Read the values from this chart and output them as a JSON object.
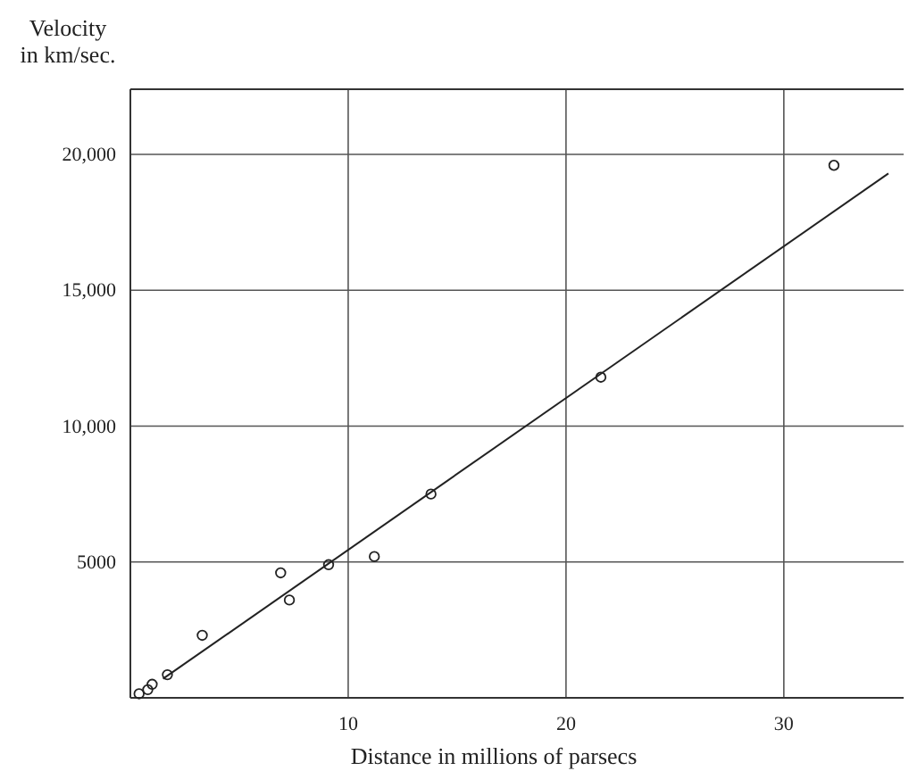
{
  "chart_data": {
    "type": "scatter",
    "xlabel": "Distance in millions of parsecs",
    "ylabel": "Velocity in km/sec.",
    "xlim": [
      0,
      35.5
    ],
    "ylim": [
      0,
      22400
    ],
    "xticks": [
      10,
      20,
      30
    ],
    "yticks": [
      {
        "value": 5000,
        "label": "5000"
      },
      {
        "value": 10000,
        "label": "10,000"
      },
      {
        "value": 15000,
        "label": "15,000"
      },
      {
        "value": 20000,
        "label": "20,000"
      }
    ],
    "grid": true,
    "series": [
      {
        "marker": "circle",
        "color": "#222222",
        "x": [
          0.4,
          0.8,
          1.0,
          1.7,
          3.3,
          6.9,
          7.3,
          9.1,
          11.2,
          13.8,
          21.6,
          32.3
        ],
        "values": [
          150,
          300,
          500,
          850,
          2300,
          4600,
          3600,
          4900,
          5200,
          7500,
          11800,
          19600
        ]
      },
      {
        "type": "line",
        "marker": "none",
        "color": "#222222",
        "x": [
          1.5,
          34.8
        ],
        "values": [
          700,
          19300
        ]
      }
    ]
  }
}
